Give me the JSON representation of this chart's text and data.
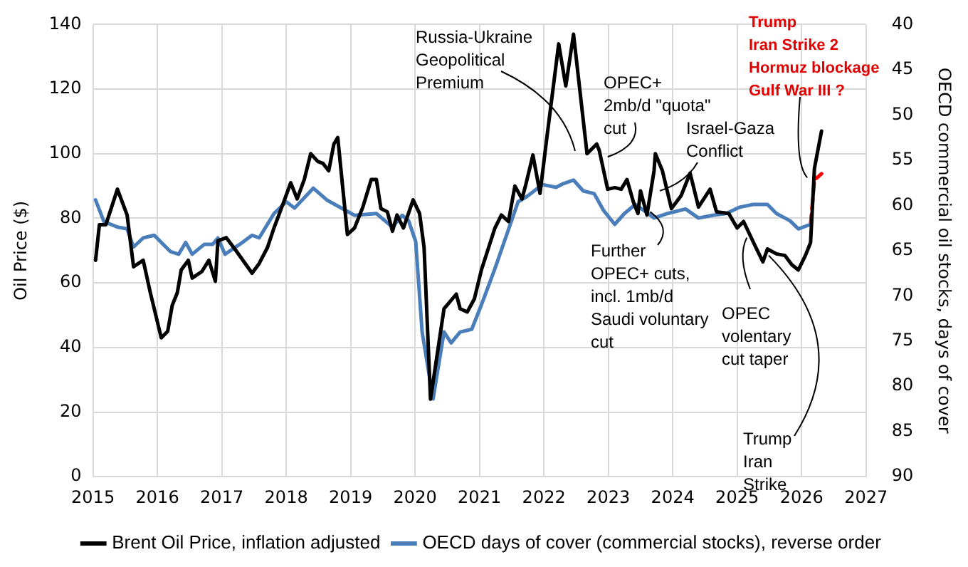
{
  "chart_data": {
    "type": "line",
    "ylabel": "Oil Price ($)",
    "y2label": "OECD commercial oil stocks, days of cover",
    "xlim": [
      2015,
      2027
    ],
    "xticks": [
      2015,
      2016,
      2017,
      2018,
      2019,
      2020,
      2021,
      2022,
      2023,
      2024,
      2025,
      2026,
      2027
    ],
    "ylim": [
      0,
      140
    ],
    "yticks": [
      0,
      20,
      40,
      60,
      80,
      100,
      120,
      140
    ],
    "y2lim": [
      90,
      40
    ],
    "y2ticks": [
      90,
      85,
      80,
      75,
      70,
      65,
      60,
      55,
      50,
      45,
      40
    ],
    "grid": true,
    "legend": "bottom",
    "marker": "none",
    "line_style": "solid",
    "series": [
      {
        "name": "Brent Oil Price, inflation adjusted",
        "color": "#000000",
        "x": [
          2015.04,
          2015.1,
          2015.2,
          2015.38,
          2015.53,
          2015.63,
          2015.78,
          2015.89,
          2016.06,
          2016.16,
          2016.23,
          2016.31,
          2016.37,
          2016.48,
          2016.54,
          2016.69,
          2016.8,
          2016.9,
          2016.94,
          2017.07,
          2017.22,
          2017.47,
          2017.58,
          2017.71,
          2017.81,
          2017.96,
          2018.07,
          2018.17,
          2018.28,
          2018.38,
          2018.49,
          2018.57,
          2018.66,
          2018.74,
          2018.8,
          2018.95,
          2019.06,
          2019.19,
          2019.32,
          2019.4,
          2019.47,
          2019.57,
          2019.65,
          2019.72,
          2019.82,
          2019.97,
          2020.07,
          2020.14,
          2020.24,
          2020.45,
          2020.64,
          2020.7,
          2020.81,
          2020.92,
          2021.03,
          2021.24,
          2021.34,
          2021.45,
          2021.55,
          2021.66,
          2021.72,
          2021.83,
          2021.94,
          2022.04,
          2022.23,
          2022.34,
          2022.46,
          2022.67,
          2022.82,
          2022.86,
          2022.99,
          2023.1,
          2023.2,
          2023.29,
          2023.39,
          2023.46,
          2023.5,
          2023.6,
          2023.71,
          2023.73,
          2023.84,
          2023.98,
          2024.13,
          2024.27,
          2024.4,
          2024.58,
          2024.68,
          2024.87,
          2025.0,
          2025.1,
          2025.29,
          2025.4,
          2025.47,
          2025.61,
          2025.74,
          2025.85,
          2025.95,
          2026.06,
          2026.14,
          2026.2,
          2026.31
        ],
        "values": [
          67,
          78,
          78,
          89,
          81,
          65,
          67,
          57,
          43,
          45,
          53,
          57,
          64,
          67,
          61.5,
          63.5,
          67,
          60.5,
          73,
          74,
          70,
          63,
          66,
          71,
          77,
          85,
          91,
          86,
          92,
          100,
          97.6,
          97,
          94.7,
          103,
          105,
          75,
          77,
          83.5,
          92,
          92,
          83,
          82,
          76,
          81,
          77,
          85.7,
          81.5,
          71,
          24,
          52,
          56.5,
          52,
          51,
          55,
          64,
          77,
          81,
          79,
          90,
          86,
          90.5,
          99.6,
          87.7,
          104,
          134,
          121,
          137,
          100,
          103,
          101,
          89,
          89.5,
          89,
          92,
          85,
          81.5,
          88.5,
          81,
          94.7,
          100,
          94.7,
          83,
          87,
          94,
          83.5,
          89,
          82,
          81.5,
          77,
          79,
          71,
          66.5,
          70.5,
          69,
          68.5,
          65.6,
          64,
          68.5,
          72.5,
          95.5,
          107
        ]
      },
      {
        "name": "OECD days of cover (commercial stocks), reverse order",
        "color": "#4a7ebb",
        "axis": "y2",
        "x": [
          2015.04,
          2015.17,
          2015.38,
          2015.53,
          2015.63,
          2015.78,
          2015.95,
          2016.2,
          2016.33,
          2016.44,
          2016.54,
          2016.73,
          2016.86,
          2016.94,
          2017.05,
          2017.28,
          2017.47,
          2017.58,
          2017.81,
          2018.0,
          2018.13,
          2018.42,
          2018.63,
          2019.06,
          2019.4,
          2019.65,
          2019.8,
          2019.9,
          2020.01,
          2020.11,
          2020.28,
          2020.45,
          2020.56,
          2020.7,
          2020.88,
          2021.03,
          2021.24,
          2021.6,
          2021.72,
          2021.98,
          2022.19,
          2022.3,
          2022.46,
          2022.61,
          2022.78,
          2022.93,
          2023.1,
          2023.25,
          2023.42,
          2023.56,
          2023.71,
          2023.92,
          2024.2,
          2024.4,
          2024.62,
          2024.83,
          2025.04,
          2025.25,
          2025.47,
          2025.61,
          2025.82,
          2025.95,
          2026.14
        ],
        "values": [
          59.4,
          61.8,
          62.4,
          62.6,
          64.6,
          63.6,
          63.3,
          65.1,
          65.4,
          64.1,
          65.4,
          64.3,
          64.3,
          63.6,
          65.4,
          64.3,
          63.3,
          63.6,
          60.9,
          59.6,
          60.3,
          58.1,
          59.4,
          61.1,
          60.9,
          62.4,
          61.1,
          61.7,
          64,
          74,
          81.4,
          74,
          75.2,
          74,
          73.7,
          71,
          67,
          59.6,
          59.1,
          57.7,
          58,
          57.6,
          57.2,
          58.4,
          58.7,
          60.6,
          62.1,
          60.9,
          59.9,
          60.6,
          61.4,
          60.9,
          60.4,
          61.4,
          61.1,
          60.9,
          60.2,
          59.9,
          59.9,
          60.9,
          61.7,
          62.6,
          62.1
        ]
      },
      {
        "color": "#ff0000",
        "axis": "y2",
        "line_style": "dashed",
        "x": [
          2026.14,
          2026.2,
          2026.31
        ],
        "values": [
          62.1,
          57.2,
          56.5
        ]
      }
    ],
    "annotations": [
      "Russia-Ukraine\nGeopolitical\nPremium",
      {
        "text": "OPEC+\n2mb/d \"quota\"\ncut",
        "x": 2022.99,
        "y": 99
      },
      {
        "text": "Israel-Gaza\nConflict",
        "x": 2023.8,
        "y": 88.5
      },
      {
        "text": "Further\nOPEC+ cuts,\nincl. 1mb/d\nSaudi voluntary\ncut",
        "x": 2023.65,
        "y": 82
      },
      {
        "text": "OPEC\nvolentary\ncut taper",
        "x": 2025.15,
        "y": 74
      },
      {
        "text": "Trump\nIran\nStrike",
        "x": 2025.49,
        "y": 68.5
      },
      {
        "text": "Trump\nIran Strike 2\nHormuz blockage\nGulf War III ?",
        "x": 2026.09,
        "y": 92.6
      }
    ]
  }
}
